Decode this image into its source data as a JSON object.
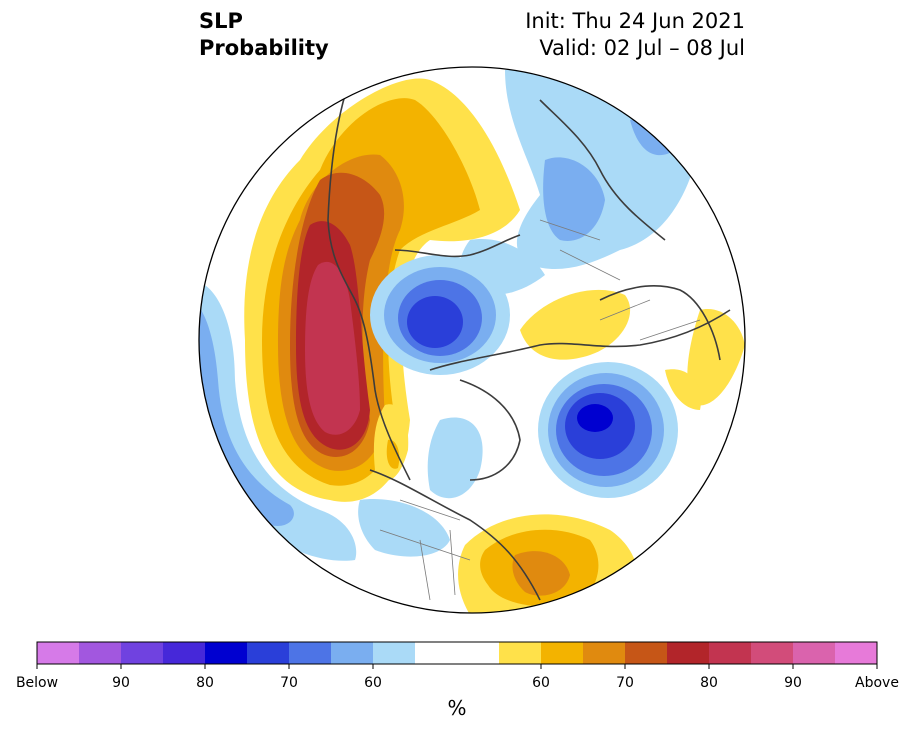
{
  "header": {
    "title_line1": "SLP",
    "title_line2": "Probability",
    "init": "Init: Thu 24 Jun 2021",
    "valid": "Valid: 02 Jul – 08 Jul"
  },
  "colorbar": {
    "colors": [
      "#d67ae8",
      "#a257df",
      "#7042e0",
      "#4628d9",
      "#0000d0",
      "#2a3fd9",
      "#4d74e6",
      "#7aaef0",
      "#aadaf7",
      "#ffffff",
      "#ffffff",
      "#ffe14a",
      "#f3b300",
      "#e08a0f",
      "#c65617",
      "#b2252a",
      "#c23450",
      "#d24c7a",
      "#da63ad",
      "#e77ad9"
    ],
    "labels": [
      "Below",
      "90",
      "80",
      "70",
      "60",
      "60",
      "70",
      "80",
      "90",
      "Above"
    ],
    "unit": "%"
  },
  "map": {
    "projection": "north-polar-stereographic",
    "region": "Northern Hemisphere"
  }
}
